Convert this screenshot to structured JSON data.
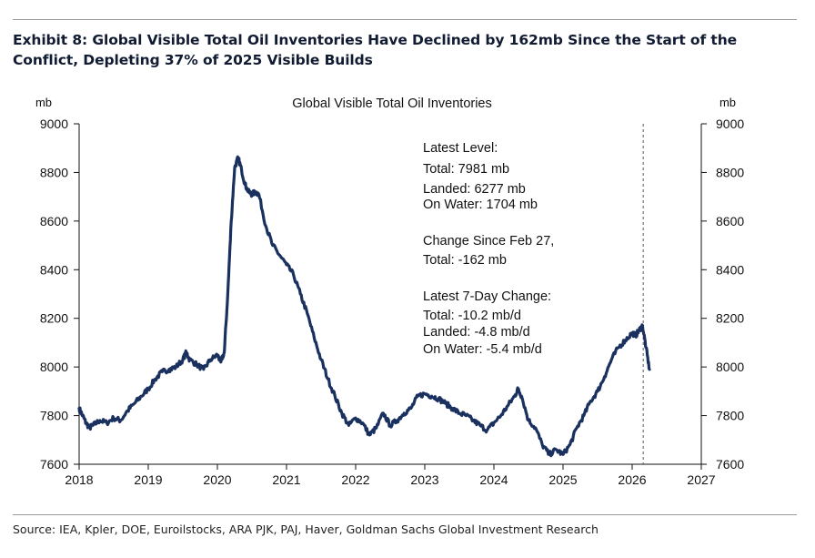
{
  "header": {
    "exhibit_title_line1": "Exhibit 8: Global Visible Total Oil Inventories Have Declined by 162mb Since the Start of the",
    "exhibit_title_line2": "Conflict, Depleting 37% of 2025 Visible Builds"
  },
  "footer": {
    "source": "Source: IEA, Kpler, DOE, Euroilstocks, ARA PJK, PAJ, Haver, Goldman Sachs Global Investment Research"
  },
  "colors": {
    "series": "#1a3160",
    "axis": "#111111",
    "title": "#111c33"
  },
  "chart_data": {
    "type": "line",
    "title": "Global Visible Total Oil Inventories",
    "ylabel_left": "mb",
    "ylabel_right": "mb",
    "xlabel": "",
    "grid": false,
    "xlim": [
      2018,
      2027
    ],
    "ylim": [
      7600,
      9000
    ],
    "x_ticks": [
      "2018",
      "2019",
      "2020",
      "2021",
      "2022",
      "2023",
      "2024",
      "2025",
      "2026",
      "2027"
    ],
    "y_ticks_left": [
      "9000",
      "8800",
      "8600",
      "8400",
      "8200",
      "8000",
      "7800",
      "7600"
    ],
    "y_ticks_right": [
      "9000",
      "8800",
      "8600",
      "8400",
      "8200",
      "8000",
      "7800",
      "7600"
    ],
    "vline_x": 2026.16,
    "series": [
      {
        "name": "Global Visible Total Oil Inventories",
        "x": [
          2018.0,
          2018.05,
          2018.1,
          2018.15,
          2018.2,
          2018.3,
          2018.4,
          2018.5,
          2018.6,
          2018.7,
          2018.8,
          2018.9,
          2019.0,
          2019.1,
          2019.2,
          2019.3,
          2019.4,
          2019.5,
          2019.55,
          2019.6,
          2019.7,
          2019.8,
          2019.9,
          2020.0,
          2020.05,
          2020.1,
          2020.15,
          2020.2,
          2020.25,
          2020.3,
          2020.35,
          2020.4,
          2020.45,
          2020.5,
          2020.55,
          2020.6,
          2020.7,
          2020.8,
          2020.9,
          2021.0,
          2021.1,
          2021.2,
          2021.3,
          2021.4,
          2021.5,
          2021.6,
          2021.7,
          2021.8,
          2021.9,
          2022.0,
          2022.1,
          2022.2,
          2022.3,
          2022.4,
          2022.5,
          2022.6,
          2022.7,
          2022.8,
          2022.9,
          2023.0,
          2023.1,
          2023.2,
          2023.3,
          2023.4,
          2023.5,
          2023.6,
          2023.7,
          2023.8,
          2023.9,
          2024.0,
          2024.1,
          2024.2,
          2024.3,
          2024.35,
          2024.4,
          2024.5,
          2024.6,
          2024.7,
          2024.8,
          2024.9,
          2025.0,
          2025.1,
          2025.2,
          2025.3,
          2025.4,
          2025.5,
          2025.6,
          2025.7,
          2025.8,
          2025.9,
          2026.0,
          2026.05,
          2026.1,
          2026.15,
          2026.2,
          2026.25
        ],
        "values": [
          7830,
          7800,
          7770,
          7750,
          7760,
          7780,
          7770,
          7790,
          7780,
          7820,
          7850,
          7880,
          7910,
          7950,
          7980,
          7990,
          8000,
          8030,
          8060,
          8030,
          8010,
          7990,
          8030,
          8050,
          8020,
          8060,
          8300,
          8600,
          8820,
          8860,
          8810,
          8750,
          8720,
          8710,
          8720,
          8710,
          8580,
          8500,
          8460,
          8420,
          8380,
          8300,
          8220,
          8120,
          8030,
          7950,
          7880,
          7810,
          7760,
          7790,
          7770,
          7720,
          7750,
          7810,
          7760,
          7780,
          7810,
          7830,
          7880,
          7890,
          7880,
          7870,
          7850,
          7830,
          7810,
          7800,
          7780,
          7760,
          7740,
          7770,
          7800,
          7840,
          7880,
          7910,
          7880,
          7780,
          7750,
          7680,
          7640,
          7660,
          7640,
          7680,
          7750,
          7800,
          7860,
          7900,
          7960,
          8030,
          8080,
          8110,
          8140,
          8130,
          8150,
          8170,
          8080,
          7990
        ]
      }
    ],
    "annotations": [
      "Latest Level:",
      "Total: 7981 mb",
      "Landed: 6277 mb",
      "On Water: 1704 mb",
      "Change Since Feb 27,",
      "Total: -162 mb",
      "Latest 7-Day Change:",
      "Total: -10.2 mb/d",
      "Landed: -4.8 mb/d",
      "On Water: -5.4 mb/d"
    ]
  }
}
